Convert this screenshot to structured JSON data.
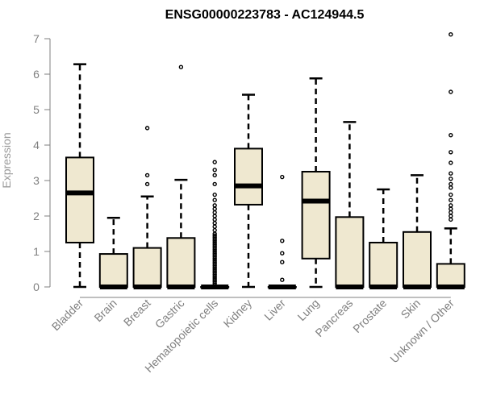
{
  "chart_data": {
    "type": "boxplot",
    "title": "ENSG00000223783 - AC124944.5",
    "ylabel": "Expression",
    "xlabel": "",
    "ylim": [
      0,
      7
    ],
    "yticks": [
      0,
      1,
      2,
      3,
      4,
      5,
      6,
      7
    ],
    "box_fill": "#efe8d0",
    "box_stroke": "#000000",
    "axis_color": "#7f7f7f",
    "categories": [
      "Bladder",
      "Brain",
      "Breast",
      "Gastric",
      "Hematopoietic cells",
      "Kidney",
      "Liver",
      "Lung",
      "Pancreas",
      "Prostate",
      "Skin",
      "Unknown / Other"
    ],
    "series": [
      {
        "category": "Bladder",
        "whisker_low": 0,
        "q1": 1.25,
        "median": 2.65,
        "q3": 3.65,
        "whisker_high": 6.28,
        "outliers": []
      },
      {
        "category": "Brain",
        "whisker_low": 0,
        "q1": 0,
        "median": 0,
        "q3": 0.93,
        "whisker_high": 1.95,
        "outliers": []
      },
      {
        "category": "Breast",
        "whisker_low": 0,
        "q1": 0,
        "median": 0,
        "q3": 1.1,
        "whisker_high": 2.55,
        "outliers": [
          2.9,
          3.15,
          4.48
        ]
      },
      {
        "category": "Gastric",
        "whisker_low": 0,
        "q1": 0,
        "median": 0,
        "q3": 1.38,
        "whisker_high": 3.02,
        "outliers": [
          6.2
        ]
      },
      {
        "category": "Hematopoietic cells",
        "whisker_low": 0,
        "q1": 0,
        "median": 0,
        "q3": 0,
        "whisker_high": 0,
        "outliers": [
          0.05,
          0.1,
          0.15,
          0.2,
          0.25,
          0.3,
          0.35,
          0.4,
          0.45,
          0.5,
          0.55,
          0.6,
          0.65,
          0.7,
          0.75,
          0.8,
          0.85,
          0.9,
          0.95,
          1.0,
          1.05,
          1.1,
          1.15,
          1.2,
          1.25,
          1.3,
          1.35,
          1.4,
          1.45,
          1.5,
          1.6,
          1.7,
          1.8,
          1.9,
          2.0,
          2.1,
          2.2,
          2.3,
          2.45,
          2.6,
          2.9,
          3.15,
          3.3,
          3.52
        ]
      },
      {
        "category": "Kidney",
        "whisker_low": 0,
        "q1": 2.32,
        "median": 2.85,
        "q3": 3.9,
        "whisker_high": 5.42,
        "outliers": []
      },
      {
        "category": "Liver",
        "whisker_low": 0,
        "q1": 0,
        "median": 0,
        "q3": 0,
        "whisker_high": 0,
        "outliers": [
          0.2,
          0.7,
          0.95,
          1.3,
          3.1
        ]
      },
      {
        "category": "Lung",
        "whisker_low": 0,
        "q1": 0.8,
        "median": 2.42,
        "q3": 3.25,
        "whisker_high": 5.88,
        "outliers": []
      },
      {
        "category": "Pancreas",
        "whisker_low": 0,
        "q1": 0,
        "median": 0,
        "q3": 1.97,
        "whisker_high": 4.65,
        "outliers": []
      },
      {
        "category": "Prostate",
        "whisker_low": 0,
        "q1": 0,
        "median": 0,
        "q3": 1.25,
        "whisker_high": 2.75,
        "outliers": []
      },
      {
        "category": "Skin",
        "whisker_low": 0,
        "q1": 0,
        "median": 0,
        "q3": 1.55,
        "whisker_high": 3.15,
        "outliers": []
      },
      {
        "category": "Unknown / Other",
        "whisker_low": 0,
        "q1": 0,
        "median": 0,
        "q3": 0.65,
        "whisker_high": 1.65,
        "outliers": [
          1.9,
          2.0,
          2.1,
          2.2,
          2.3,
          2.45,
          2.6,
          2.8,
          2.9,
          3.05,
          3.2,
          3.5,
          3.8,
          4.28,
          5.5,
          7.12
        ]
      }
    ]
  }
}
